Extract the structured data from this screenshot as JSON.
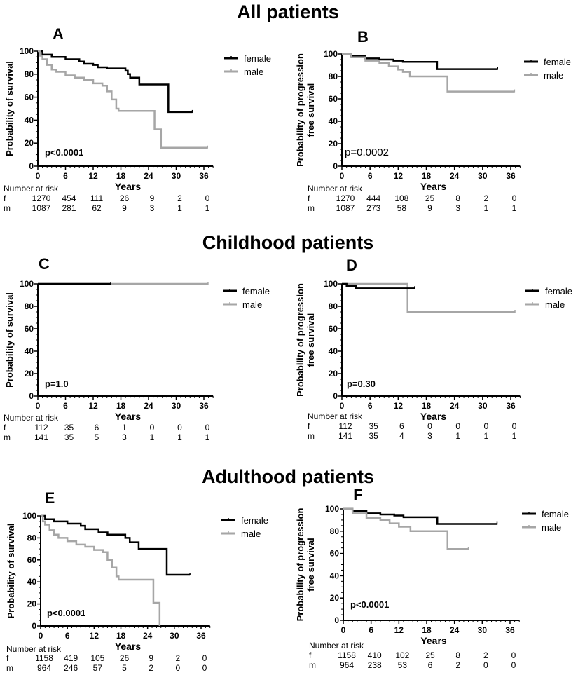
{
  "sections": [
    "All patients",
    "Childhood patients",
    "Adulthood patients"
  ],
  "colors": {
    "female": "#000000",
    "male": "#a6a6a6"
  },
  "chart_data": [
    {
      "type": "line",
      "id": "A",
      "section": 0,
      "ylabel": [
        "Probability of survival"
      ],
      "xlabel": "Years",
      "xticks": [
        "0",
        "6",
        "12",
        "18",
        "24",
        "30",
        "36"
      ],
      "yticks": [
        "0",
        "20",
        "40",
        "60",
        "80",
        "100"
      ],
      "xlim": [
        0,
        38
      ],
      "ylim": [
        0,
        100
      ],
      "pvalue": "p<0.0001",
      "pbold": true,
      "legend": [
        "female",
        "male"
      ],
      "series": [
        {
          "name": "female",
          "points": [
            [
              0,
              100
            ],
            [
              1,
              97
            ],
            [
              3,
              95
            ],
            [
              6,
              93
            ],
            [
              9,
              91
            ],
            [
              10,
              89
            ],
            [
              12,
              88
            ],
            [
              13,
              86
            ],
            [
              15,
              85
            ],
            [
              19,
              83
            ],
            [
              19.5,
              80
            ],
            [
              20,
              77
            ],
            [
              22,
              71
            ],
            [
              28.3,
              47
            ]
          ],
          "end": 33.5
        },
        {
          "name": "male",
          "points": [
            [
              0,
              100
            ],
            [
              0.5,
              96
            ],
            [
              1,
              93
            ],
            [
              2,
              88
            ],
            [
              3,
              84
            ],
            [
              4,
              82
            ],
            [
              6,
              79
            ],
            [
              8,
              77
            ],
            [
              10,
              75
            ],
            [
              12,
              72
            ],
            [
              14,
              70
            ],
            [
              15,
              65
            ],
            [
              16,
              58
            ],
            [
              17,
              50
            ],
            [
              17.5,
              48
            ],
            [
              25.3,
              32
            ],
            [
              26.7,
              16
            ]
          ],
          "end": 36.8
        }
      ],
      "risk": {
        "label": "Number at risk",
        "rows": [
          {
            "name": "f",
            "values": [
              "1270",
              "454",
              "111",
              "26",
              "9",
              "2",
              "0"
            ]
          },
          {
            "name": "m",
            "values": [
              "1087",
              "281",
              "62",
              "9",
              "3",
              "1",
              "1"
            ]
          }
        ]
      }
    },
    {
      "type": "line",
      "id": "B",
      "section": 0,
      "ylabel": [
        "Probability of progression",
        "free survival"
      ],
      "xlabel": "Years",
      "xticks": [
        "0",
        "6",
        "12",
        "18",
        "24",
        "30",
        "36"
      ],
      "yticks": [
        "0",
        "20",
        "40",
        "60",
        "80",
        "100"
      ],
      "xlim": [
        0,
        38
      ],
      "ylim": [
        0,
        100
      ],
      "pvalue": "p=0.0002",
      "pbold": false,
      "legend": [
        "female",
        "male"
      ],
      "series": [
        {
          "name": "female",
          "points": [
            [
              0,
              100
            ],
            [
              2,
              98
            ],
            [
              5,
              96
            ],
            [
              8,
              95
            ],
            [
              11,
              94
            ],
            [
              13,
              93
            ],
            [
              20.3,
              86.5
            ]
          ],
          "end": 33.2
        },
        {
          "name": "male",
          "points": [
            [
              0,
              100
            ],
            [
              2,
              97
            ],
            [
              5,
              94
            ],
            [
              8,
              92
            ],
            [
              10,
              89
            ],
            [
              12,
              86
            ],
            [
              13,
              84
            ],
            [
              14.5,
              80
            ],
            [
              22.5,
              66.5
            ]
          ],
          "end": 36.8
        }
      ],
      "risk": {
        "label": "Number at risk",
        "rows": [
          {
            "name": "f",
            "values": [
              "1270",
              "444",
              "108",
              "25",
              "8",
              "2",
              "0"
            ]
          },
          {
            "name": "m",
            "values": [
              "1087",
              "273",
              "58",
              "9",
              "3",
              "1",
              "1"
            ]
          }
        ]
      }
    },
    {
      "type": "line",
      "id": "C",
      "section": 1,
      "ylabel": [
        "Probability of survival"
      ],
      "xlabel": "Years",
      "xticks": [
        "0",
        "6",
        "12",
        "18",
        "24",
        "30",
        "36"
      ],
      "yticks": [
        "0",
        "20",
        "40",
        "60",
        "80",
        "100"
      ],
      "xlim": [
        0,
        38
      ],
      "ylim": [
        0,
        100
      ],
      "pvalue": "p=1.0",
      "pbold": true,
      "legend": [
        "female",
        "male"
      ],
      "series": [
        {
          "name": "male",
          "points": [
            [
              0,
              100
            ]
          ],
          "end": 36.9
        },
        {
          "name": "female",
          "points": [
            [
              0,
              100
            ]
          ],
          "end": 15.8
        }
      ],
      "risk": {
        "label": "Number at risk",
        "rows": [
          {
            "name": "f",
            "values": [
              "112",
              "35",
              "6",
              "1",
              "0",
              "0",
              "0"
            ]
          },
          {
            "name": "m",
            "values": [
              "141",
              "35",
              "5",
              "3",
              "1",
              "1",
              "1"
            ]
          }
        ]
      }
    },
    {
      "type": "line",
      "id": "D",
      "section": 1,
      "ylabel": [
        "Probability of progression",
        "free survival"
      ],
      "xlabel": "Years",
      "xticks": [
        "0",
        "6",
        "12",
        "18",
        "24",
        "30",
        "36"
      ],
      "yticks": [
        "0",
        "20",
        "40",
        "60",
        "80",
        "100"
      ],
      "xlim": [
        0,
        38
      ],
      "ylim": [
        0,
        100
      ],
      "pvalue": "p=0.30",
      "pbold": true,
      "legend": [
        "female",
        "male"
      ],
      "series": [
        {
          "name": "male",
          "points": [
            [
              0,
              100
            ],
            [
              14,
              75
            ]
          ],
          "end": 36.9
        },
        {
          "name": "female",
          "points": [
            [
              0,
              100
            ],
            [
              1,
              98
            ],
            [
              3,
              96
            ]
          ],
          "end": 15.5
        }
      ],
      "risk": {
        "label": "Number at risk",
        "rows": [
          {
            "name": "f",
            "values": [
              "112",
              "35",
              "6",
              "0",
              "0",
              "0",
              "0"
            ]
          },
          {
            "name": "m",
            "values": [
              "141",
              "35",
              "4",
              "3",
              "1",
              "1",
              "1"
            ]
          }
        ]
      }
    },
    {
      "type": "line",
      "id": "E",
      "section": 2,
      "ylabel": [
        "Probability of survival"
      ],
      "xlabel": "Years",
      "xticks": [
        "0",
        "6",
        "12",
        "18",
        "24",
        "30",
        "36"
      ],
      "yticks": [
        "0",
        "20",
        "40",
        "60",
        "80",
        "100"
      ],
      "xlim": [
        0,
        38
      ],
      "ylim": [
        0,
        100
      ],
      "pvalue": "p<0.0001",
      "pbold": true,
      "legend": [
        "female",
        "male"
      ],
      "series": [
        {
          "name": "female",
          "points": [
            [
              0,
              100
            ],
            [
              1,
              97
            ],
            [
              3,
              95
            ],
            [
              6,
              93
            ],
            [
              9,
              91
            ],
            [
              10,
              88
            ],
            [
              13,
              85
            ],
            [
              15,
              83
            ],
            [
              19,
              80
            ],
            [
              20,
              76
            ],
            [
              22,
              70
            ],
            [
              28.3,
              46.5
            ]
          ],
          "end": 33.5
        },
        {
          "name": "male",
          "points": [
            [
              0,
              100
            ],
            [
              0.5,
              95
            ],
            [
              1,
              92
            ],
            [
              2,
              87
            ],
            [
              3,
              83
            ],
            [
              4,
              80
            ],
            [
              6,
              77
            ],
            [
              8,
              74
            ],
            [
              10,
              72
            ],
            [
              12,
              69
            ],
            [
              14,
              67
            ],
            [
              15,
              60
            ],
            [
              16,
              53
            ],
            [
              17,
              45
            ],
            [
              17.5,
              42
            ],
            [
              25.3,
              21
            ],
            [
              26.7,
              0
            ]
          ],
          "end": 26.7
        }
      ],
      "risk": {
        "label": "Number at risk",
        "rows": [
          {
            "name": "f",
            "values": [
              "1158",
              "419",
              "105",
              "26",
              "9",
              "2",
              "0"
            ]
          },
          {
            "name": "m",
            "values": [
              "964",
              "246",
              "57",
              "5",
              "2",
              "0",
              "0"
            ]
          }
        ]
      }
    },
    {
      "type": "line",
      "id": "F",
      "section": 2,
      "ylabel": [
        "Probability of progression",
        "free survival"
      ],
      "xlabel": "Years",
      "xticks": [
        "0",
        "6",
        "12",
        "18",
        "24",
        "30",
        "36"
      ],
      "yticks": [
        "0",
        "20",
        "40",
        "60",
        "80",
        "100"
      ],
      "xlim": [
        0,
        38
      ],
      "ylim": [
        0,
        100
      ],
      "pvalue": "p<0.0001",
      "pbold": true,
      "legend": [
        "female",
        "male"
      ],
      "series": [
        {
          "name": "female",
          "points": [
            [
              0,
              100
            ],
            [
              2,
              98
            ],
            [
              5,
              96
            ],
            [
              8,
              95
            ],
            [
              11,
              94
            ],
            [
              13,
              92.5
            ],
            [
              20.3,
              86.5
            ]
          ],
          "end": 33.2
        },
        {
          "name": "male",
          "points": [
            [
              0,
              100
            ],
            [
              2,
              96
            ],
            [
              5,
              92
            ],
            [
              8,
              90
            ],
            [
              10,
              87
            ],
            [
              12,
              84
            ],
            [
              14.5,
              80
            ],
            [
              22.5,
              64
            ]
          ],
          "end": 27
        }
      ],
      "risk": {
        "label": "Number at risk",
        "rows": [
          {
            "name": "f",
            "values": [
              "1158",
              "410",
              "102",
              "25",
              "8",
              "2",
              "0"
            ]
          },
          {
            "name": "m",
            "values": [
              "964",
              "238",
              "53",
              "6",
              "2",
              "0",
              "0"
            ]
          }
        ]
      }
    }
  ]
}
